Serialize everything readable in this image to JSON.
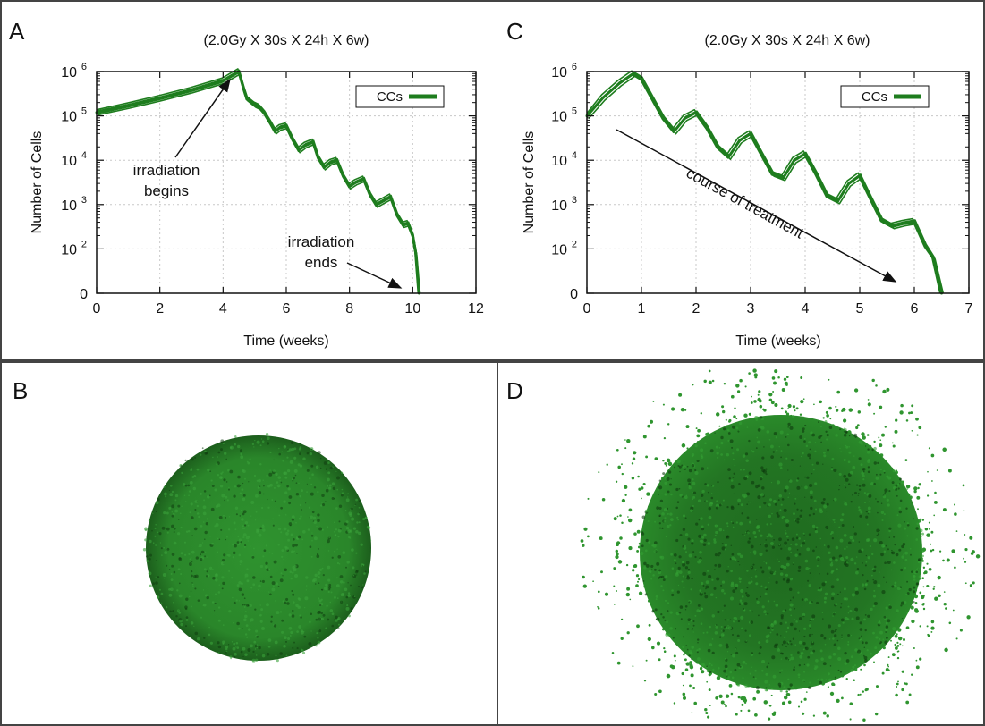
{
  "panels": {
    "a": "A",
    "b": "B",
    "c": "C",
    "d": "D"
  },
  "colors": {
    "series": "#1e7d1e",
    "spheroid_fill": "#2b8a2b",
    "spheroid_dark": "#0f3d0f",
    "grid": "#c8c8c8"
  },
  "chart_data": [
    {
      "type": "line",
      "panel": "A",
      "title": "(2.0Gy X 30s X 24h X 6w)",
      "xlabel": "Time (weeks)",
      "ylabel": "Number of Cells",
      "xlim": [
        0,
        12
      ],
      "x_ticks": [
        "0",
        "2",
        "4",
        "6",
        "8",
        "10",
        "12"
      ],
      "y_scale": "log (with 0 at bottom)",
      "y_ticks": [
        "0",
        "10",
        "10",
        "10",
        "10",
        "10"
      ],
      "y_tick_exponents": [
        "",
        "2",
        "3",
        "4",
        "5",
        "6"
      ],
      "grid": true,
      "legend": {
        "position": "top-right",
        "entries": [
          "CCs"
        ]
      },
      "series": [
        {
          "name": "CCs",
          "points": [
            [
              0,
              120000
            ],
            [
              1,
              170000
            ],
            [
              2,
              250000
            ],
            [
              3,
              380000
            ],
            [
              4,
              620000
            ],
            [
              4.5,
              1000000
            ],
            [
              4.65,
              420000
            ],
            [
              4.75,
              250000
            ],
            [
              5.0,
              180000
            ],
            [
              5.15,
              160000
            ],
            [
              5.3,
              120000
            ],
            [
              5.5,
              70000
            ],
            [
              5.65,
              45000
            ],
            [
              5.8,
              55000
            ],
            [
              6.0,
              60000
            ],
            [
              6.2,
              30000
            ],
            [
              6.4,
              17000
            ],
            [
              6.6,
              22000
            ],
            [
              6.85,
              26000
            ],
            [
              7.0,
              12000
            ],
            [
              7.2,
              7000
            ],
            [
              7.4,
              9000
            ],
            [
              7.6,
              10000
            ],
            [
              7.8,
              4500
            ],
            [
              8.0,
              2600
            ],
            [
              8.2,
              3200
            ],
            [
              8.45,
              3800
            ],
            [
              8.65,
              1700
            ],
            [
              8.85,
              1000
            ],
            [
              9.05,
              1200
            ],
            [
              9.3,
              1500
            ],
            [
              9.5,
              600
            ],
            [
              9.7,
              350
            ],
            [
              9.85,
              380
            ],
            [
              10.0,
              200
            ],
            [
              10.1,
              60
            ],
            [
              10.2,
              0
            ]
          ]
        }
      ],
      "annotations": [
        {
          "lines": [
            "irradiation",
            "begins"
          ],
          "arrow_to": [
            4.5,
            900000
          ]
        },
        {
          "lines": [
            "irradiation",
            "ends"
          ],
          "arrow_to": [
            10.0,
            6
          ]
        }
      ]
    },
    {
      "type": "line",
      "panel": "C",
      "title": "(2.0Gy X 30s X 24h X 6w)",
      "xlabel": "Time (weeks)",
      "ylabel": "Number of Cells",
      "xlim": [
        0,
        7
      ],
      "x_ticks": [
        "0",
        "1",
        "2",
        "3",
        "4",
        "5",
        "6",
        "7"
      ],
      "y_scale": "log (with 0 at bottom)",
      "y_ticks": [
        "0",
        "10",
        "10",
        "10",
        "10",
        "10"
      ],
      "y_tick_exponents": [
        "",
        "2",
        "3",
        "4",
        "5",
        "6"
      ],
      "grid": true,
      "legend": {
        "position": "top-right",
        "entries": [
          "CCs"
        ]
      },
      "series": [
        {
          "name": "CCs",
          "points": [
            [
              0,
              100000
            ],
            [
              0.3,
              260000
            ],
            [
              0.6,
              550000
            ],
            [
              0.85,
              900000
            ],
            [
              1.0,
              700000
            ],
            [
              1.2,
              250000
            ],
            [
              1.4,
              90000
            ],
            [
              1.6,
              45000
            ],
            [
              1.8,
              90000
            ],
            [
              2.0,
              120000
            ],
            [
              2.2,
              55000
            ],
            [
              2.4,
              20000
            ],
            [
              2.6,
              12000
            ],
            [
              2.8,
              28000
            ],
            [
              3.0,
              40000
            ],
            [
              3.2,
              14000
            ],
            [
              3.4,
              5000
            ],
            [
              3.6,
              4000
            ],
            [
              3.8,
              10000
            ],
            [
              4.0,
              14000
            ],
            [
              4.2,
              5000
            ],
            [
              4.4,
              1600
            ],
            [
              4.6,
              1200
            ],
            [
              4.8,
              3000
            ],
            [
              5.0,
              4500
            ],
            [
              5.2,
              1400
            ],
            [
              5.4,
              450
            ],
            [
              5.6,
              330
            ],
            [
              5.8,
              380
            ],
            [
              6.0,
              420
            ],
            [
              6.2,
              120
            ],
            [
              6.35,
              40
            ],
            [
              6.5,
              0
            ]
          ]
        }
      ],
      "annotations": [
        {
          "lines": [
            "course of treatment"
          ],
          "arrow_from": [
            0.6,
            50000
          ],
          "arrow_to": [
            6.0,
            6
          ]
        }
      ]
    }
  ]
}
